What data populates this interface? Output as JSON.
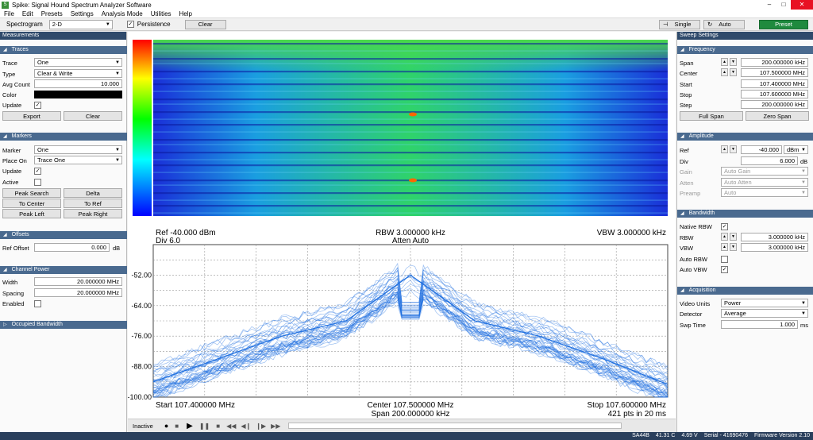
{
  "window": {
    "title": "Spike: Signal Hound Spectrum Analyzer Software",
    "app_icon": "spike-app-icon"
  },
  "menu": [
    "File",
    "Edit",
    "Presets",
    "Settings",
    "Analysis Mode",
    "Utilities",
    "Help"
  ],
  "toolbar": {
    "spectrogram_label": "Spectrogram",
    "spectrogram_value": "2-D",
    "persistence_label": "Persistence",
    "clear_label": "Clear",
    "single_label": "Single",
    "auto_label": "Auto",
    "preset_label": "Preset"
  },
  "left": {
    "measurements_title": "Measurements",
    "traces": {
      "title": "Traces",
      "trace_label": "Trace",
      "trace_value": "One",
      "type_label": "Type",
      "type_value": "Clear & Write",
      "avg_label": "Avg Count",
      "avg_value": "10.000",
      "color_label": "Color",
      "update_label": "Update",
      "export_label": "Export",
      "clear_label": "Clear"
    },
    "markers": {
      "title": "Markers",
      "marker_label": "Marker",
      "marker_value": "One",
      "placeon_label": "Place On",
      "placeon_value": "Trace One",
      "update_label": "Update",
      "active_label": "Active",
      "peak_search": "Peak Search",
      "delta": "Delta",
      "to_center": "To Center",
      "to_ref": "To Ref",
      "peak_left": "Peak Left",
      "peak_right": "Peak Right"
    },
    "offsets": {
      "title": "Offsets",
      "ref_label": "Ref Offset",
      "ref_value": "0.000",
      "ref_unit": "dB"
    },
    "channel_power": {
      "title": "Channel Power",
      "width_label": "Width",
      "width_value": "20.000000 MHz",
      "spacing_label": "Spacing",
      "spacing_value": "20.000000 MHz",
      "enabled_label": "Enabled"
    },
    "occupied": {
      "title": "Occupied Bandwidth"
    }
  },
  "right": {
    "sweep_title": "Sweep Settings",
    "frequency": {
      "title": "Frequency",
      "span_label": "Span",
      "span_value": "200.000000 kHz",
      "center_label": "Center",
      "center_value": "107.500000 MHz",
      "start_label": "Start",
      "start_value": "107.400000 MHz",
      "stop_label": "Stop",
      "stop_value": "107.600000 MHz",
      "step_label": "Step",
      "step_value": "200.000000 kHz",
      "full_span": "Full Span",
      "zero_span": "Zero Span"
    },
    "amplitude": {
      "title": "Amplitude",
      "ref_label": "Ref",
      "ref_value": "-40.000",
      "ref_unit": "dBm",
      "div_label": "Div",
      "div_value": "6.000",
      "div_unit": "dB",
      "gain_label": "Gain",
      "gain_value": "Auto Gain",
      "atten_label": "Atten",
      "atten_value": "Auto Atten",
      "preamp_label": "Preamp",
      "preamp_value": "Auto"
    },
    "bandwidth": {
      "title": "Bandwidth",
      "native_label": "Native RBW",
      "rbw_label": "RBW",
      "rbw_value": "3.000000 kHz",
      "vbw_label": "VBW",
      "vbw_value": "3.000000 kHz",
      "auto_rbw_label": "Auto RBW",
      "auto_vbw_label": "Auto VBW"
    },
    "acquisition": {
      "title": "Acquisition",
      "video_label": "Video Units",
      "video_value": "Power",
      "detector_label": "Detector",
      "detector_value": "Average",
      "swp_label": "Swp Time",
      "swp_value": "1.000",
      "swp_unit": "ms"
    }
  },
  "plot": {
    "ref": "Ref -40.000 dBm",
    "div": "Div 6.0",
    "rbw": "RBW 3.000000 kHz",
    "atten": "Atten Auto",
    "vbw": "VBW 3.000000 kHz",
    "start": "Start 107.400000 MHz",
    "center": "Center 107.500000 MHz",
    "span": "Span 200.000000 kHz",
    "stop": "Stop 107.600000 MHz",
    "pts": "421 pts in 20 ms"
  },
  "chart_data": {
    "type": "line",
    "title": "",
    "xlabel": "",
    "ylabel": "",
    "x_range": [
      107.4,
      107.6
    ],
    "x_unit": "MHz",
    "ylim": [
      -100,
      -40
    ],
    "y_ticks": [
      "-52.00",
      "-64.00",
      "-76.00",
      "-88.00",
      "-100.00"
    ],
    "y_tick_values": [
      -52,
      -64,
      -76,
      -88,
      -100
    ],
    "x": [
      107.4,
      107.425,
      107.45,
      107.475,
      107.5,
      107.525,
      107.55,
      107.575,
      107.6
    ],
    "series": [
      {
        "values": [
          -94,
          -85,
          -76,
          -70,
          -52,
          -70,
          -76,
          -85,
          -95
        ]
      }
    ]
  },
  "playback": {
    "state": "Inactive",
    "controls": [
      "record-icon",
      "stop-icon",
      "play-icon",
      "pause-icon",
      "stop-icon",
      "rewind-icon",
      "step-back-icon",
      "step-forward-icon",
      "fast-forward-icon"
    ]
  },
  "status": {
    "device": "SA44B",
    "temp": "41.31 C",
    "voltage": "4.69 V",
    "serial": "Serial - 41690476",
    "firmware": "Firmware Version 2.10"
  },
  "colors": {
    "panel_header": "#2f4a6b",
    "section_header": "#4a6a8f",
    "preset": "#1f8a3e",
    "trace": "#1e6fe0"
  }
}
